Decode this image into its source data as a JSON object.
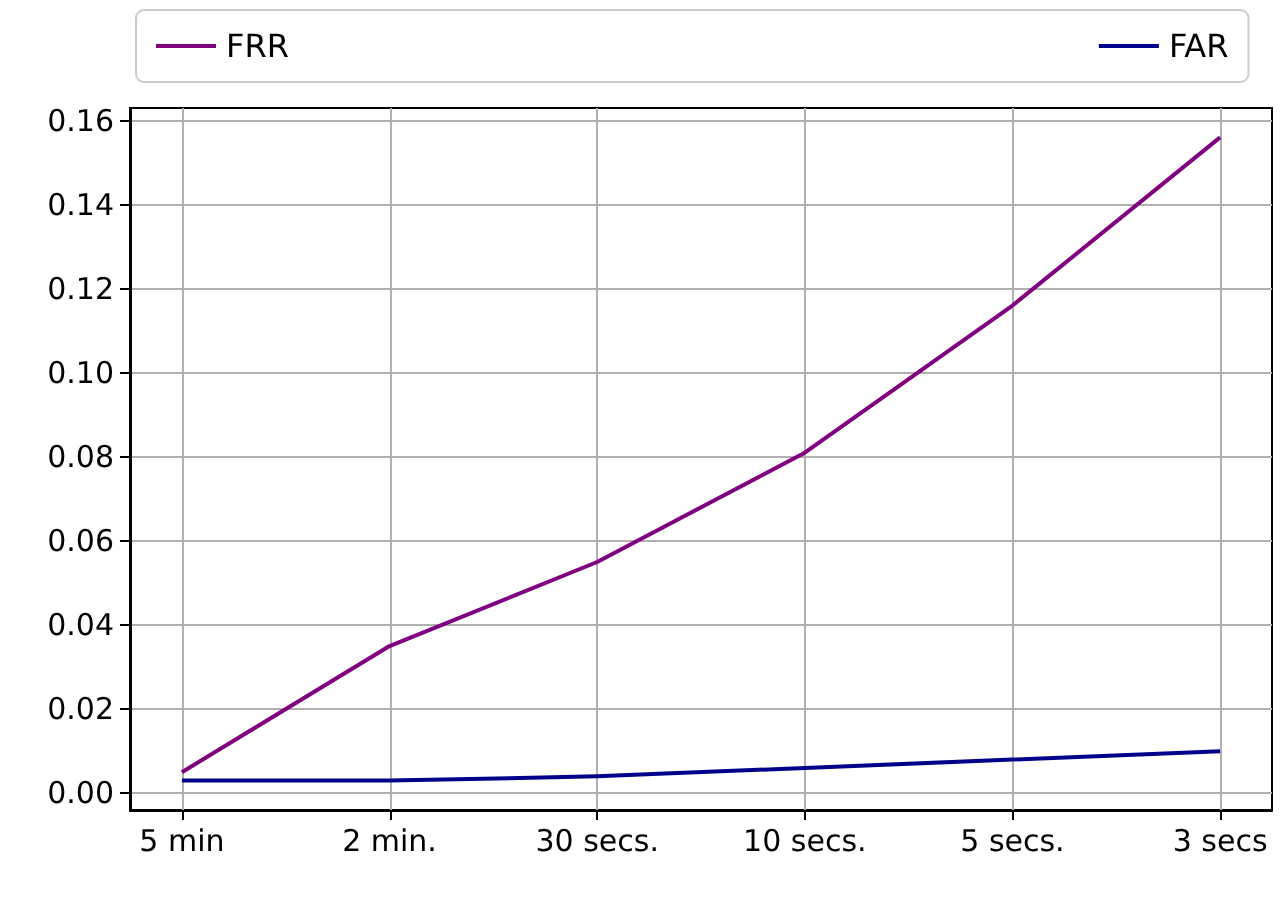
{
  "chart_data": {
    "type": "line",
    "categories": [
      "5 min",
      "2 min.",
      "30 secs.",
      "10 secs.",
      "5 secs.",
      "3 secs"
    ],
    "series": [
      {
        "name": "FRR",
        "color": "#800080",
        "values": [
          0.005,
          0.035,
          0.055,
          0.081,
          0.116,
          0.156
        ]
      },
      {
        "name": "FAR",
        "color": "#00008b",
        "values": [
          0.003,
          0.003,
          0.004,
          0.006,
          0.008,
          0.01
        ]
      }
    ],
    "ylim": [
      -0.004,
      0.163
    ],
    "yticks": [
      {
        "value": 0,
        "label": "0.00"
      },
      {
        "value": 0.02,
        "label": "0.02"
      },
      {
        "value": 0.04,
        "label": "0.04"
      },
      {
        "value": 0.06,
        "label": "0.06"
      },
      {
        "value": 0.08,
        "label": "0.08"
      },
      {
        "value": 0.1,
        "label": "0.10"
      },
      {
        "value": 0.12,
        "label": "0.12"
      },
      {
        "value": 0.14,
        "label": "0.14"
      },
      {
        "value": 0.16,
        "label": "0.16"
      }
    ],
    "grid": true,
    "legend": "top",
    "marker": "none",
    "line_style": "solid"
  }
}
